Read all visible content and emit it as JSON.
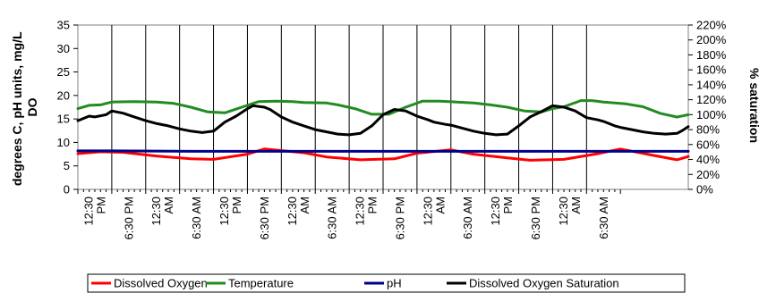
{
  "chart_data": {
    "type": "line",
    "ylabel_left": [
      "degrees C, pH units, mg/L",
      "DO"
    ],
    "ylabel_right": "% saturation",
    "ylim_left": [
      0,
      35
    ],
    "ylim_right": [
      0,
      220
    ],
    "yticks_left": [
      "0",
      "5",
      "10",
      "15",
      "20",
      "25",
      "30",
      "35"
    ],
    "yticks_right": [
      "0%",
      "20%",
      "40%",
      "60%",
      "80%",
      "100%",
      "120%",
      "140%",
      "160%",
      "180%",
      "200%",
      "220%"
    ],
    "grid": "vertical",
    "legend_position": "bottom",
    "x_ticks": [
      [
        "12:30",
        "PM"
      ],
      [
        "6:30 PM"
      ],
      [
        "12:30",
        "AM"
      ],
      [
        "6:30 AM"
      ],
      [
        "12:30",
        "PM"
      ],
      [
        "6:30 PM"
      ],
      [
        "12:30",
        "AM"
      ],
      [
        "6:30 AM"
      ],
      [
        "12:30",
        "PM"
      ],
      [
        "6:30 PM"
      ],
      [
        "12:30",
        "AM"
      ],
      [
        "6:30 AM"
      ],
      [
        "12:30",
        "PM"
      ],
      [
        "6:30 PM"
      ],
      [
        "12:30",
        "AM"
      ],
      [
        "6:30 AM"
      ]
    ],
    "x_minor_per_major": 6,
    "x_max": 108,
    "series": [
      {
        "name": "Dissolved Oxygen",
        "color": "#ff0000",
        "axis": "left",
        "x": [
          0,
          4,
          8,
          14,
          20,
          24,
          30,
          33,
          40,
          44,
          50,
          56,
          60,
          66,
          70,
          76,
          80,
          86,
          92,
          96,
          102,
          106,
          108
        ],
        "y": [
          7.6,
          8.0,
          7.9,
          7.1,
          6.5,
          6.4,
          7.5,
          8.6,
          7.8,
          6.9,
          6.3,
          6.5,
          7.7,
          8.4,
          7.5,
          6.7,
          6.2,
          6.4,
          7.6,
          8.6,
          7.2,
          6.3,
          7.0
        ]
      },
      {
        "name": "Temperature",
        "color": "#228b22",
        "axis": "left",
        "x": [
          0,
          2,
          4,
          6,
          10,
          14,
          17,
          20,
          23,
          26,
          29,
          32,
          35,
          38,
          40,
          44,
          46,
          49,
          52,
          55,
          58,
          61,
          64,
          67,
          70,
          73,
          76,
          79,
          82,
          84,
          86,
          89,
          91,
          93,
          95,
          97,
          100,
          103,
          106,
          108
        ],
        "y": [
          17.2,
          17.9,
          18.0,
          18.6,
          18.7,
          18.6,
          18.3,
          17.5,
          16.5,
          16.3,
          17.5,
          18.7,
          18.8,
          18.7,
          18.5,
          18.4,
          18.0,
          17.2,
          16.0,
          16.0,
          17.5,
          18.8,
          18.8,
          18.6,
          18.4,
          18.0,
          17.5,
          16.7,
          16.5,
          17.2,
          17.6,
          18.9,
          18.9,
          18.6,
          18.4,
          18.2,
          17.6,
          16.2,
          15.4,
          15.9
        ]
      },
      {
        "name": "pH",
        "color": "#00008b",
        "axis": "left",
        "x": [
          0,
          6,
          20,
          40,
          60,
          80,
          100,
          108
        ],
        "y": [
          8.2,
          8.2,
          8.1,
          8.1,
          8.1,
          8.1,
          8.1,
          8.1
        ]
      },
      {
        "name": "Dissolved Oxygen Saturation",
        "color": "#000000",
        "axis": "right",
        "x": [
          0,
          2,
          3,
          5,
          6,
          8,
          10,
          12,
          14,
          16,
          18,
          20,
          22,
          24,
          26,
          28,
          30,
          31,
          33,
          34,
          36,
          38,
          40,
          42,
          44,
          46,
          48,
          50,
          52,
          54,
          56,
          58,
          60,
          62,
          63,
          65,
          66,
          68,
          70,
          72,
          74,
          76,
          78,
          80,
          82,
          84,
          86,
          88,
          90,
          92,
          93,
          95,
          96,
          98,
          100,
          102,
          104,
          106,
          107,
          108
        ],
        "y": [
          92,
          98,
          97,
          100,
          105,
          102,
          97,
          92,
          88,
          85,
          81,
          78,
          76,
          78,
          90,
          98,
          108,
          112,
          110,
          107,
          97,
          90,
          85,
          80,
          77,
          74,
          73,
          75,
          85,
          100,
          107,
          105,
          98,
          93,
          90,
          87,
          86,
          82,
          78,
          75,
          73,
          74,
          85,
          97,
          104,
          112,
          110,
          105,
          96,
          93,
          91,
          85,
          83,
          80,
          77,
          75,
          74,
          75,
          79,
          84
        ]
      }
    ]
  }
}
